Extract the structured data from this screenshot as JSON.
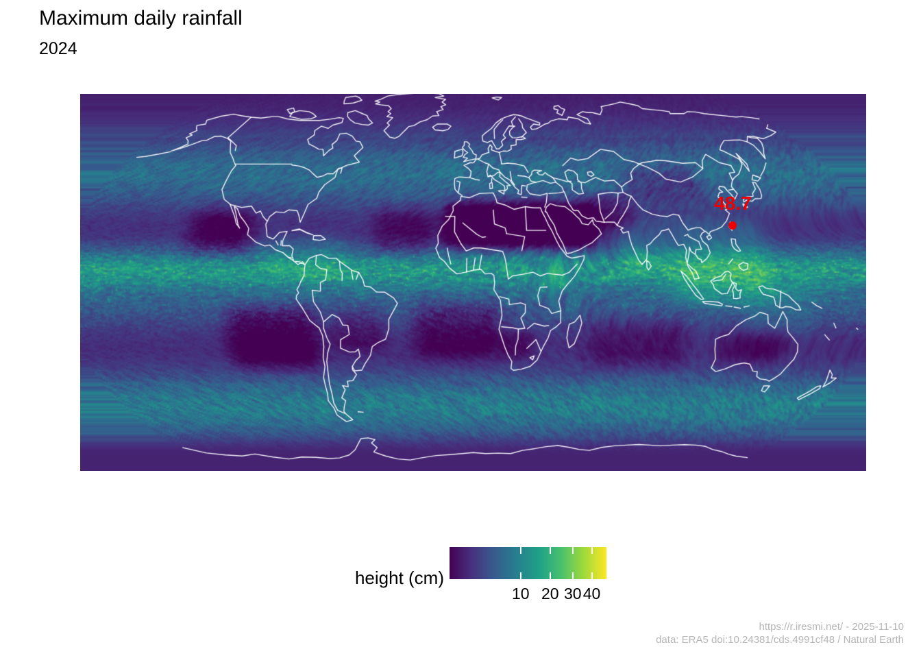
{
  "figure": {
    "title": "Maximum daily rainfall",
    "subtitle": "2024",
    "caption": {
      "line1": "https://r.iresmi.net/ - 2025-11-10",
      "line2": "data: ERA5 doi:10.24381/cds.4991cf48 / Natural Earth"
    }
  },
  "map": {
    "annotation": {
      "label": "48.7"
    }
  },
  "legend": {
    "label": "height (cm)",
    "ticks": [
      10,
      20,
      30,
      40
    ],
    "max_value": 48.7,
    "scale": "sqrt",
    "colormap": "viridis"
  },
  "colors": {
    "annotation_red": "#ee0000",
    "caption_gray": "#b6b6b6",
    "title_black": "#000000",
    "border_white": "#ffffff",
    "viridis_stops": [
      "#440154",
      "#46327e",
      "#365c8d",
      "#277f8e",
      "#1fa187",
      "#4ac16d",
      "#a0da39",
      "#fde725"
    ]
  },
  "chart_data": {
    "type": "map",
    "subtype": "raster-heatmap",
    "projection": "robinson",
    "extent": "world",
    "title": "Maximum daily rainfall",
    "subtitle": "2024",
    "legend_label": "height (cm)",
    "legend_ticks": [
      10,
      20,
      30,
      40
    ],
    "scale": "sqrt",
    "colormap": "viridis",
    "annotations": [
      {
        "label": "48.7",
        "value": 48.7,
        "marker": "point",
        "color": "#ee0000",
        "approx_lon": 122,
        "approx_lat": 24
      }
    ],
    "overlays": [
      "white country borders"
    ]
  }
}
